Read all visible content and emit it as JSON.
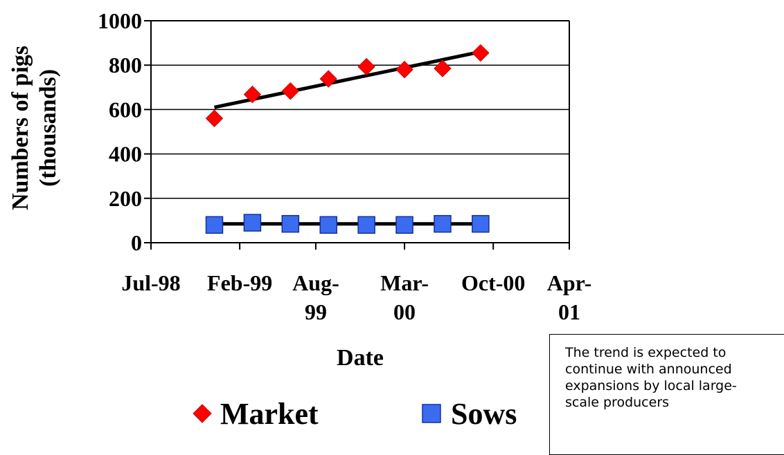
{
  "chart_data": {
    "type": "scatter",
    "ylabel": [
      "Numbers of pigs",
      "(thousands)"
    ],
    "xlabel": "Date",
    "ylim": [
      0,
      1000
    ],
    "yticks": [
      0,
      200,
      400,
      600,
      800,
      1000
    ],
    "xlim": [
      "1998-07",
      "2001-04"
    ],
    "xticks": [
      {
        "date": "1998-07",
        "lines": [
          "Jul-98"
        ]
      },
      {
        "date": "1999-02",
        "lines": [
          "Feb-99"
        ]
      },
      {
        "date": "1999-08",
        "lines": [
          "Aug-",
          "99"
        ]
      },
      {
        "date": "2000-03",
        "lines": [
          "Mar-",
          "00"
        ]
      },
      {
        "date": "2000-10",
        "lines": [
          "Oct-00"
        ]
      },
      {
        "date": "2001-04",
        "lines": [
          "Apr-",
          "01"
        ]
      }
    ],
    "grid": {
      "horizontal": true,
      "vertical": false
    },
    "legend": "bottom",
    "series": [
      {
        "name": "Market",
        "marker": "diamond",
        "color": "#ff0000",
        "points": [
          {
            "x": "1998-12",
            "y": 560
          },
          {
            "x": "1999-03",
            "y": 668
          },
          {
            "x": "1999-06",
            "y": 683
          },
          {
            "x": "1999-09",
            "y": 738
          },
          {
            "x": "1999-12",
            "y": 793
          },
          {
            "x": "2000-03",
            "y": 780
          },
          {
            "x": "2000-06",
            "y": 785
          },
          {
            "x": "2000-09",
            "y": 855
          }
        ],
        "trendline": [
          {
            "x": "1998-12",
            "y": 610
          },
          {
            "x": "2000-09",
            "y": 860
          }
        ]
      },
      {
        "name": "Sows",
        "marker": "square",
        "color": "#3b6cf0",
        "points": [
          {
            "x": "1998-12",
            "y": 80
          },
          {
            "x": "1999-03",
            "y": 90
          },
          {
            "x": "1999-06",
            "y": 85
          },
          {
            "x": "1999-09",
            "y": 80
          },
          {
            "x": "1999-12",
            "y": 80
          },
          {
            "x": "2000-03",
            "y": 80
          },
          {
            "x": "2000-06",
            "y": 85
          },
          {
            "x": "2000-09",
            "y": 85
          }
        ],
        "trendline": [
          {
            "x": "1998-12",
            "y": 85
          },
          {
            "x": "2000-09",
            "y": 85
          }
        ]
      }
    ]
  },
  "annotation": {
    "text": "The trend is expected to continue with announced expansions by local large-scale producers"
  }
}
